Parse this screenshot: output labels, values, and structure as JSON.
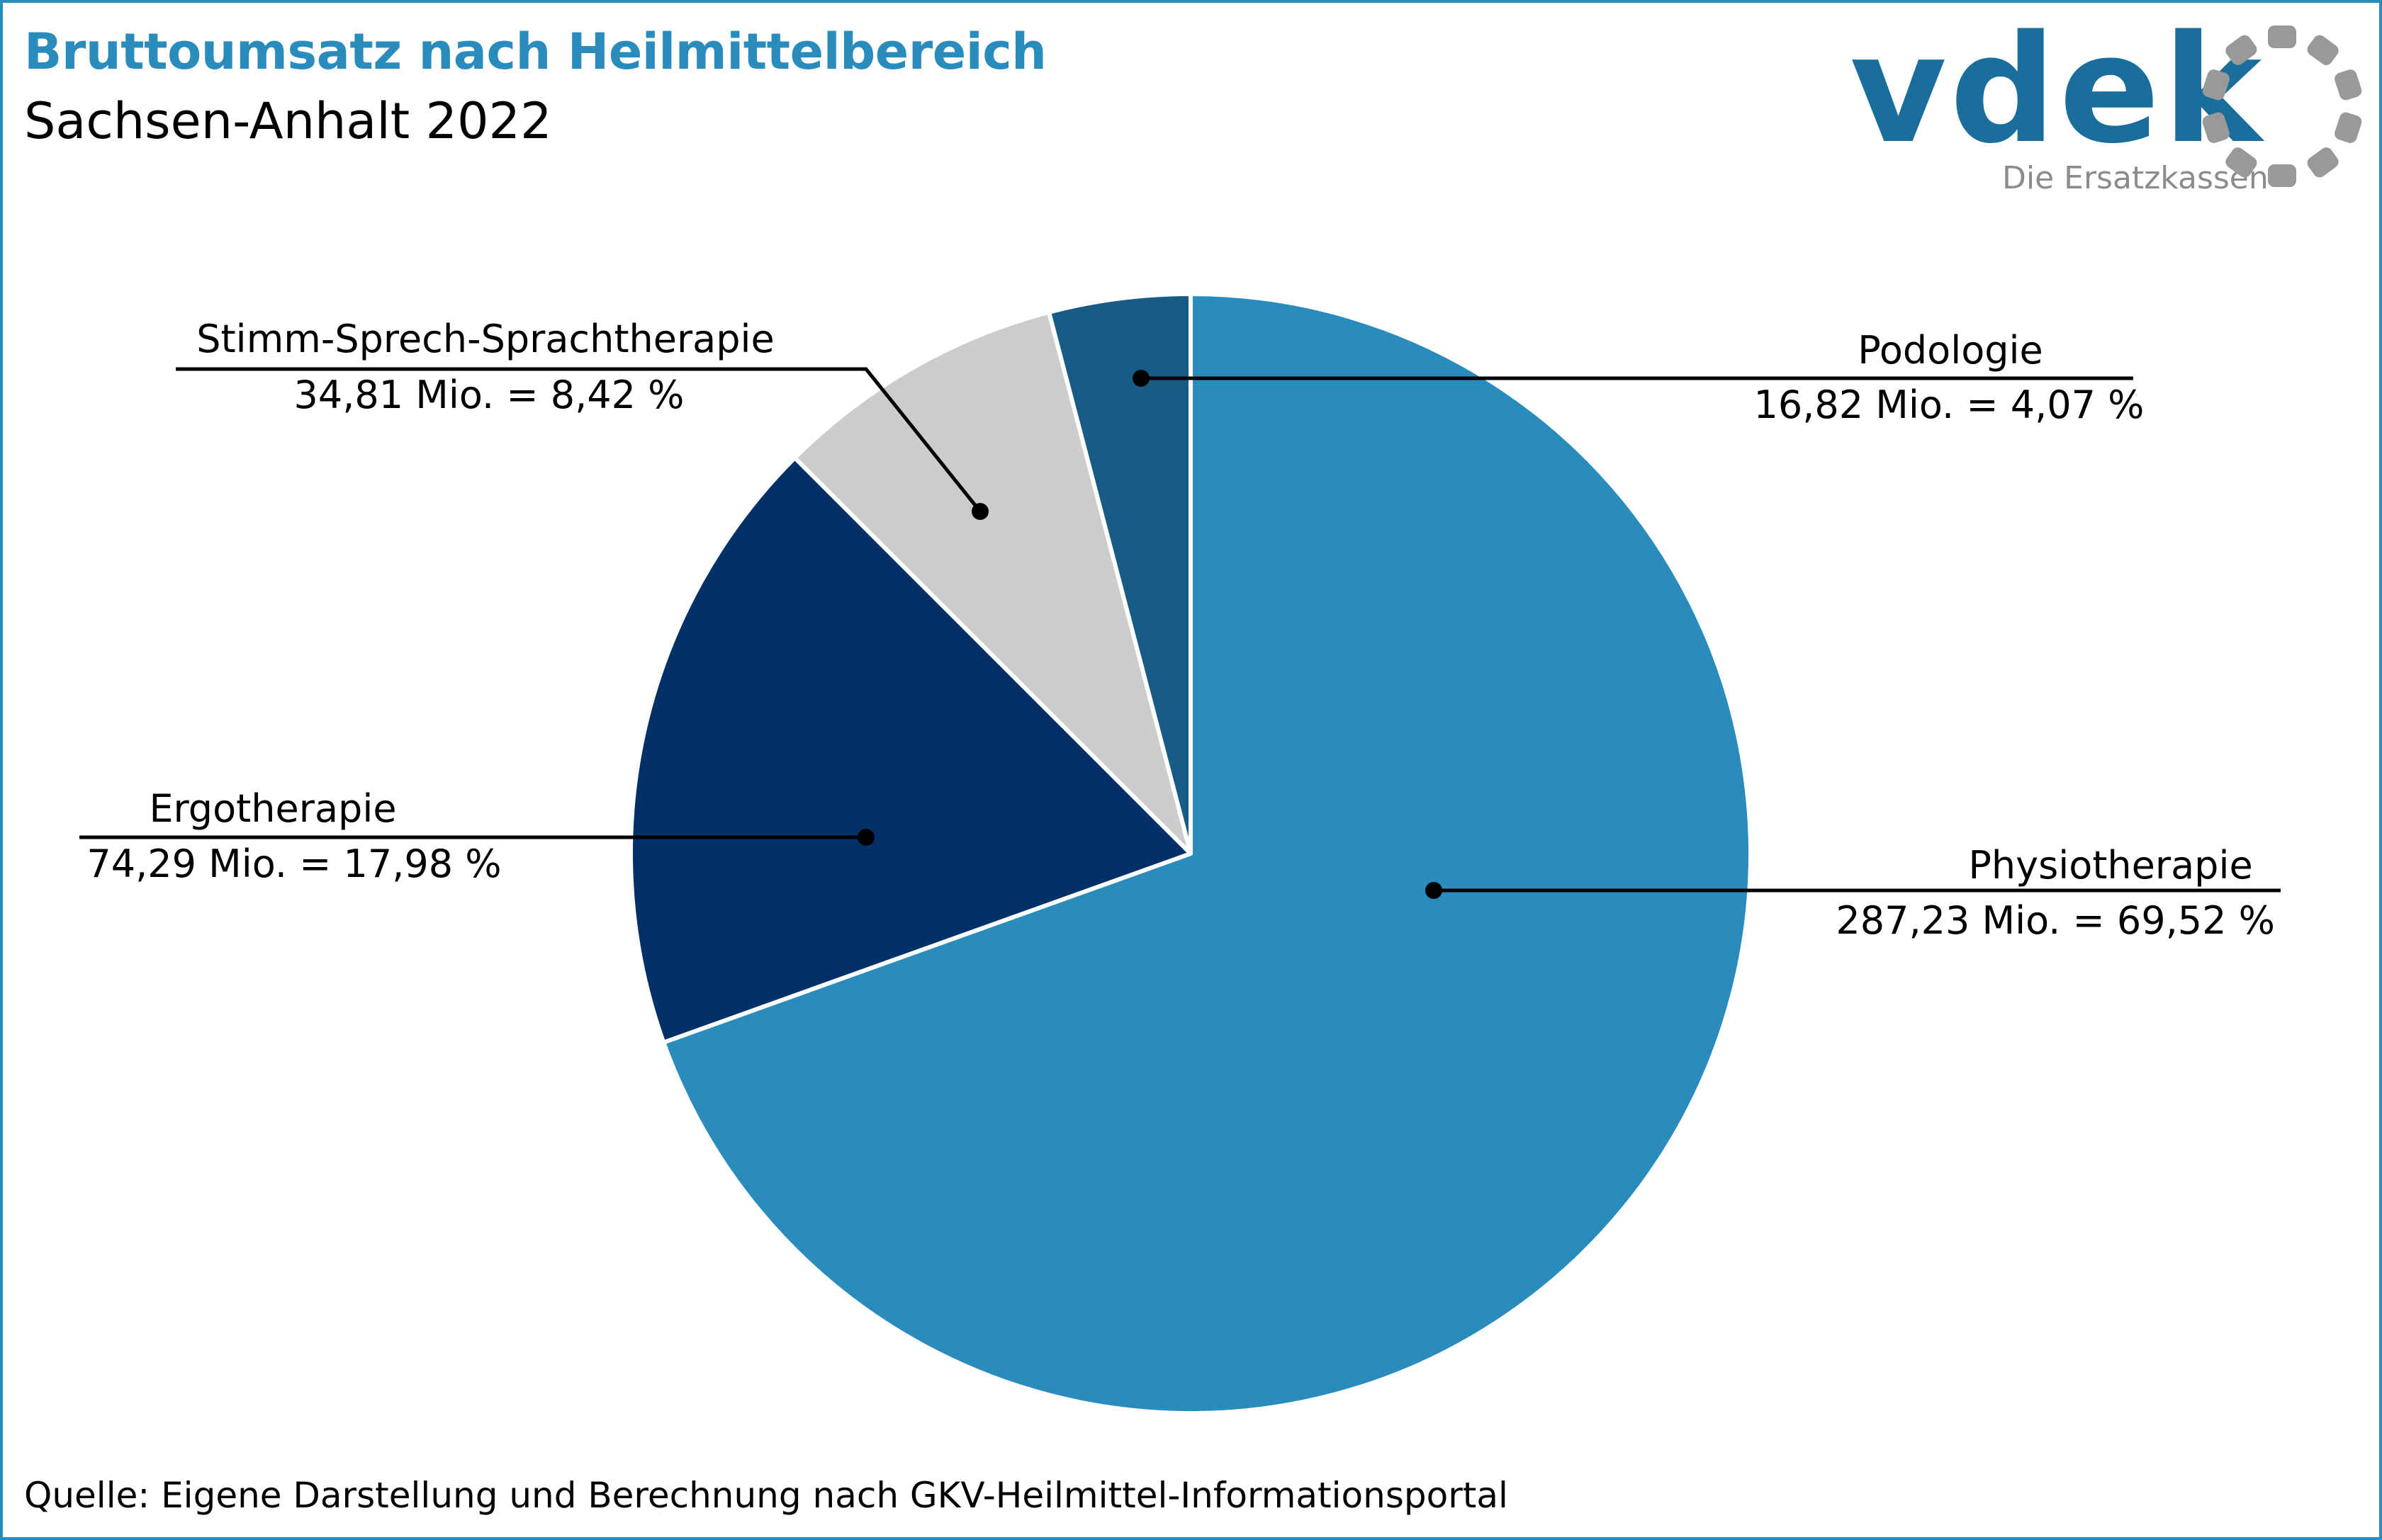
{
  "header": {
    "title": "Bruttoumsatz nach Heilmittelbereich",
    "subtitle": "Sachsen-Anhalt 2022"
  },
  "logo": {
    "wordmark": "vdek",
    "tagline": "Die Ersatzkassen"
  },
  "source": "Quelle: Eigene Darstellung und Berechnung nach GKV-Heilmittel-Informationsportal",
  "colors": {
    "accent": "#2a8bbd",
    "logo_blue": "#1a6e9c",
    "logo_grey": "#999999"
  },
  "chart_data": {
    "type": "pie",
    "unit": "Mio.",
    "slices": [
      {
        "name": "Physiotherapie",
        "value": 287.23,
        "percent": 69.52,
        "label": "287,23 Mio. = 69,52 %",
        "color": "#2a8bbd"
      },
      {
        "name": "Ergotherapie",
        "value": 74.29,
        "percent": 17.98,
        "label": "74,29 Mio. = 17,98 %",
        "color": "#02316a"
      },
      {
        "name": "Stimm-Sprech-Sprachtherapie",
        "value": 34.81,
        "percent": 8.42,
        "label": "34,81 Mio. = 8,42 %",
        "color": "#cccccc"
      },
      {
        "name": "Podologie",
        "value": 16.82,
        "percent": 4.07,
        "label": "16,82 Mio. = 4,07 %",
        "color": "#175c86"
      }
    ]
  }
}
